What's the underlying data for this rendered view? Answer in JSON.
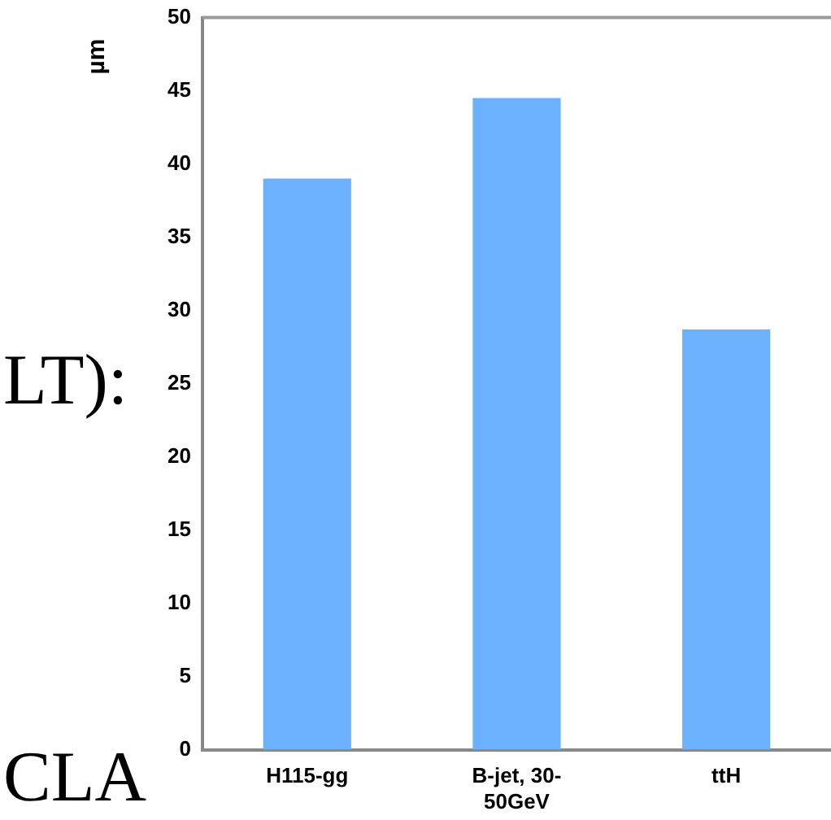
{
  "chart_data": {
    "type": "bar",
    "ylabel": "µm",
    "categories": [
      "H115-gg",
      "B-jet, 30-50GeV",
      "ttH"
    ],
    "values": [
      39,
      44.5,
      28.7
    ],
    "color": "#6cb1fd",
    "ylim": [
      0,
      50
    ],
    "yticks": [
      0,
      5,
      10,
      15,
      20,
      25,
      30,
      35,
      40,
      45,
      50
    ],
    "grid": false,
    "annotations": [
      "LT):",
      "CLA"
    ]
  }
}
